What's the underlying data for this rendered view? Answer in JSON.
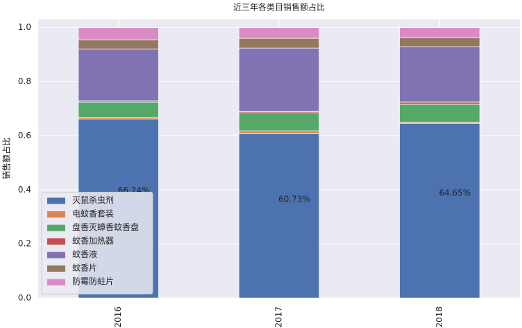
{
  "chart_data": {
    "type": "stacked_bar",
    "title": "近三年各类目销售额占比",
    "ylabel": "销售额占比",
    "categories": [
      "2016",
      "2017",
      "2018"
    ],
    "series": [
      {
        "name": "灭鼠杀虫剂",
        "color": "#4c72b0",
        "values": [
          0.6624,
          0.6073,
          0.6465
        ],
        "value_labels": [
          "66.24%",
          "60.73%",
          "64.65%"
        ]
      },
      {
        "name": "电蚊香套装",
        "color": "#dd8452",
        "values": [
          0.005,
          0.011,
          0.003
        ]
      },
      {
        "name": "盘香灭蟑香蚊香盘",
        "color": "#55a868",
        "values": [
          0.057,
          0.067,
          0.067
        ]
      },
      {
        "name": "蚊香加热器",
        "color": "#c44e52",
        "values": [
          0.005,
          0.005,
          0.008
        ]
      },
      {
        "name": "蚊香液",
        "color": "#8172b3",
        "values": [
          0.191,
          0.234,
          0.205
        ]
      },
      {
        "name": "蚊香片",
        "color": "#937860",
        "values": [
          0.034,
          0.036,
          0.034
        ]
      },
      {
        "name": "防霉防蛀片",
        "color": "#da8bc3",
        "values": [
          0.0456,
          0.0397,
          0.0365
        ]
      }
    ],
    "ylim": [
      0,
      1.03
    ],
    "yticks": [
      {
        "value": 0,
        "label": "0.0"
      },
      0.2,
      0.4,
      0.6,
      0.8,
      {
        "value": 1,
        "label": "1.0"
      }
    ],
    "grid": true,
    "legend": "lower-left"
  }
}
